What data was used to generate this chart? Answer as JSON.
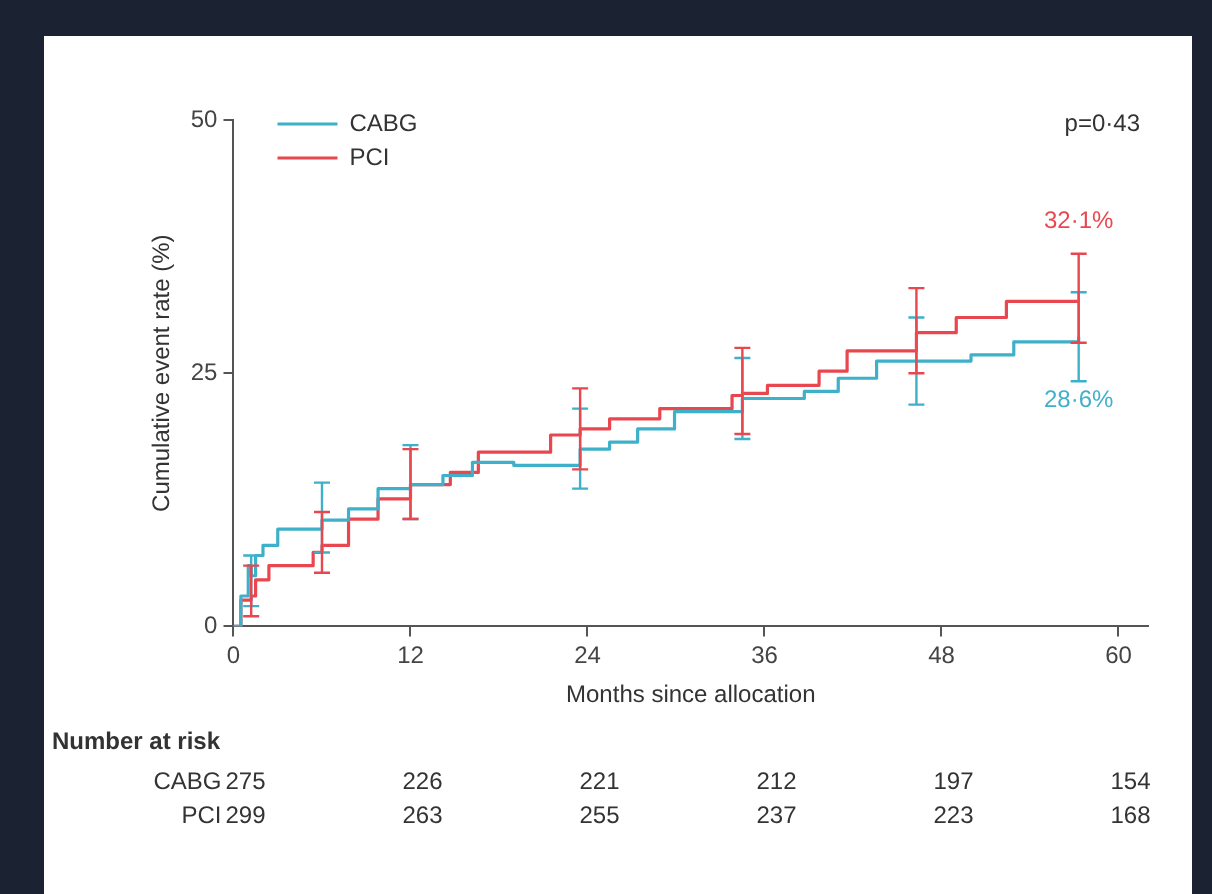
{
  "chart_data": {
    "type": "step",
    "xlabel": "Months since allocation",
    "ylabel": "Cumulative event rate (%)",
    "xlim": [
      0,
      62
    ],
    "xticks": [
      0,
      12,
      24,
      36,
      48,
      60
    ],
    "ylim": [
      0,
      50
    ],
    "yticks": [
      0,
      25,
      50
    ],
    "grid": false,
    "legend": "top left",
    "marker": "none",
    "series": [
      {
        "name": "CABG",
        "color": "#3fb0c9",
        "x": [
          0,
          0.5,
          1,
          1.2,
          1.5,
          2,
          3,
          6,
          7.8,
          9.8,
          12,
          14.2,
          16.2,
          19,
          23.5,
          25.5,
          27.4,
          29.9,
          33.8,
          34.5,
          38.7,
          41,
          43.6,
          46.3,
          50,
          52.9,
          57.3
        ],
        "values": [
          0,
          3,
          6,
          5,
          7,
          8,
          9.6,
          10.5,
          11.6,
          13.6,
          14,
          14.9,
          16.2,
          15.9,
          17.5,
          18.2,
          19.5,
          21.2,
          21.2,
          22.5,
          23.2,
          24.5,
          26.2,
          26.2,
          26.8,
          28.1,
          28.6
        ],
        "errors": [
          null,
          null,
          null,
          [
            2,
            7
          ],
          null,
          null,
          null,
          [
            7.3,
            14.2
          ],
          null,
          null,
          [
            10.6,
            17.9
          ],
          null,
          null,
          null,
          [
            13.6,
            21.5
          ],
          null,
          null,
          null,
          null,
          [
            18.5,
            26.5
          ],
          null,
          null,
          null,
          [
            21.9,
            30.5
          ],
          null,
          null,
          [
            24.2,
            33
          ]
        ]
      },
      {
        "name": "PCI",
        "color": "#e8474f",
        "x": [
          0,
          0.5,
          1.2,
          1.5,
          2.4,
          5.4,
          6,
          7.8,
          9.8,
          12,
          14.7,
          16.6,
          19.1,
          21.5,
          23.5,
          25.5,
          28.9,
          33.8,
          34.5,
          36.2,
          39.7,
          41.6,
          46.3,
          49,
          52.4,
          57.3
        ],
        "values": [
          0,
          2.6,
          3,
          4.6,
          6,
          7.3,
          8,
          10.6,
          12.6,
          14,
          15.2,
          17.2,
          17.2,
          18.9,
          19.5,
          20.5,
          21.5,
          22.8,
          23,
          23.8,
          25.2,
          27.2,
          29,
          30.5,
          32.1,
          32.1
        ],
        "errors": [
          null,
          null,
          [
            1,
            6
          ],
          null,
          null,
          null,
          [
            5.3,
            11.3
          ],
          null,
          null,
          [
            10.6,
            17.5
          ],
          null,
          null,
          null,
          null,
          [
            15.5,
            23.5
          ],
          null,
          null,
          null,
          [
            19,
            27.5
          ],
          null,
          null,
          null,
          [
            25,
            33.4
          ],
          null,
          null,
          [
            28,
            36.8
          ]
        ]
      }
    ],
    "annotations": [
      "p=0·43",
      "Number at risk",
      "CABG 275 226 221 212 197 154",
      "PCI 299 263 255 237 223 168",
      {
        "text": "32·1%",
        "x": 57.3,
        "y": 32.1
      },
      {
        "text": "28·6%",
        "x": 57.3,
        "y": 28.6
      }
    ]
  }
}
